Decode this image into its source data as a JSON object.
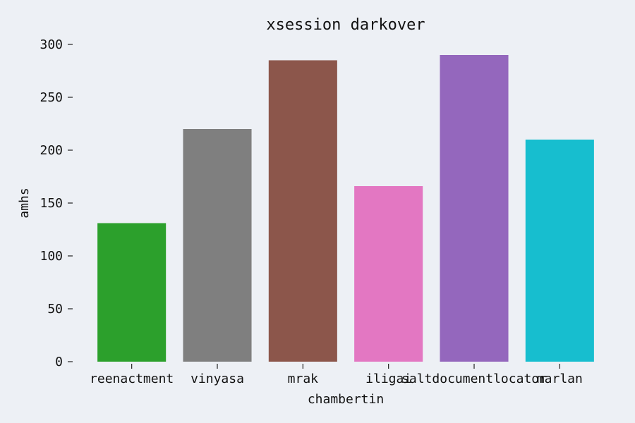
{
  "chart_data": {
    "type": "bar",
    "title": "xsession darkover",
    "xlabel": "chambertin",
    "ylabel": "amhs",
    "categories": [
      "reenactment",
      "vinyasa",
      "mrak",
      "iligai",
      "saltdocumentlocator",
      "marlan"
    ],
    "values": [
      131,
      220,
      285,
      166,
      290,
      210
    ],
    "colors": [
      "#2ca02c",
      "#7f7f7f",
      "#8c564b",
      "#e377c2",
      "#9467bd",
      "#17becf"
    ],
    "ylim": [
      0,
      300
    ],
    "yticks": [
      0,
      50,
      100,
      150,
      200,
      250,
      300
    ],
    "grid": false,
    "legend": false
  }
}
